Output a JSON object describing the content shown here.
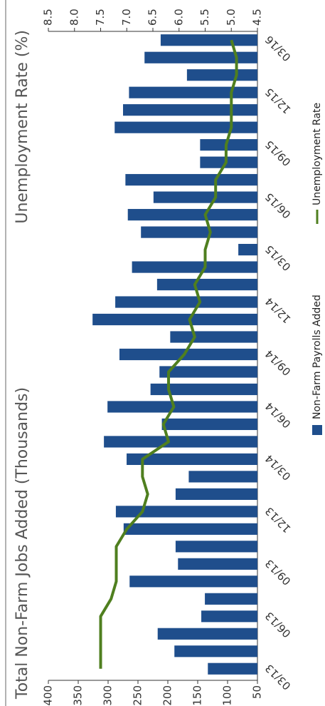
{
  "chart_data": {
    "type": "combo",
    "title_left": "Total Non-Farm Jobs Added (Thousands)",
    "title_right": "Unemployment Rate (%)",
    "categories": [
      "03/13",
      null,
      null,
      "06/13",
      null,
      null,
      "09/13",
      null,
      null,
      "12/13",
      null,
      null,
      "03/14",
      null,
      null,
      "06/14",
      null,
      null,
      "09/14",
      null,
      null,
      "12/14",
      null,
      null,
      "03/15",
      null,
      null,
      "06/15",
      null,
      null,
      "09/15",
      null,
      null,
      "12/15",
      null,
      null,
      "03/16"
    ],
    "series": [
      {
        "name": "Non-Farm Payrolls Added",
        "type": "bar",
        "color": "#1f4e8c",
        "values": [
          133,
          189,
          217,
          144,
          138,
          264,
          183,
          187,
          274,
          287,
          187,
          165,
          269,
          307,
          210,
          301,
          229,
          214,
          281,
          196,
          326,
          288,
          218,
          260,
          82,
          245,
          267,
          224,
          271,
          146,
          146,
          289,
          275,
          265,
          168,
          239,
          212
        ]
      },
      {
        "name": "Unemployment Rate",
        "type": "line",
        "axis": "y2",
        "color": "#4f7f1f",
        "values": [
          7.5,
          7.5,
          7.5,
          7.5,
          7.3,
          7.2,
          7.2,
          7.2,
          7.0,
          6.7,
          6.6,
          6.7,
          6.7,
          6.2,
          6.3,
          6.1,
          6.2,
          6.2,
          5.9,
          5.7,
          5.8,
          5.6,
          5.7,
          5.5,
          5.5,
          5.4,
          5.5,
          5.3,
          5.3,
          5.1,
          5.1,
          5.0,
          5.0,
          5.0,
          4.9,
          4.9,
          5.0
        ]
      }
    ],
    "ylim": [
      50,
      400
    ],
    "yticks": [
      50,
      100,
      150,
      200,
      250,
      300,
      350,
      400
    ],
    "y2lim": [
      4.5,
      8.5
    ],
    "y2ticks": [
      4.5,
      {
        "value": 5,
        "label": "5.0"
      },
      5.5,
      {
        "value": 6,
        "label": "6.0"
      },
      6.5,
      {
        "value": 7,
        "label": "7.0"
      },
      7.5,
      {
        "value": 8,
        "label": "8.0"
      },
      8.5
    ],
    "grid": false
  }
}
